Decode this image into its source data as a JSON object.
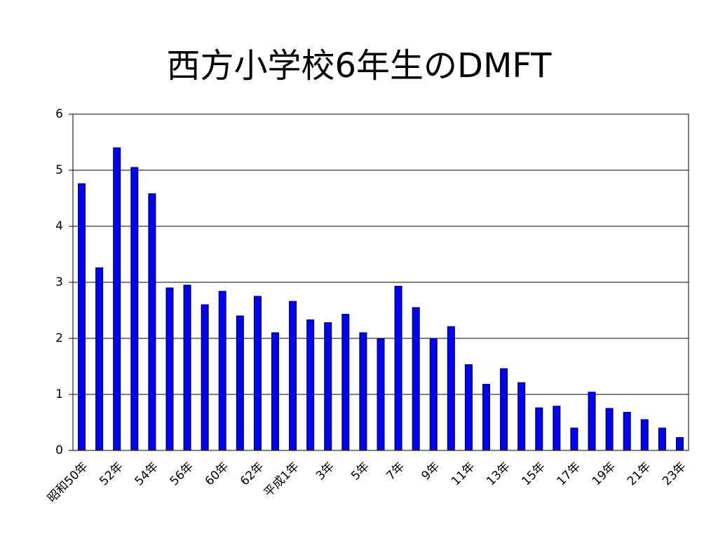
{
  "chart_data": {
    "type": "bar",
    "title": "西方小学校6年生のDMFT",
    "categories": [
      "昭和50年",
      null,
      "52年",
      null,
      "54年",
      null,
      "56年",
      null,
      "60年",
      null,
      "62年",
      null,
      "平成1年",
      null,
      "3年",
      null,
      "5年",
      null,
      "7年",
      null,
      "9年",
      null,
      "11年",
      null,
      "13年",
      null,
      "15年",
      null,
      "17年",
      null,
      "19年",
      null,
      "21年",
      null,
      "23年"
    ],
    "values": [
      4.76,
      3.26,
      5.4,
      5.05,
      4.58,
      2.9,
      2.95,
      2.6,
      2.84,
      2.4,
      2.75,
      2.1,
      2.66,
      2.33,
      2.28,
      2.43,
      2.1,
      1.99,
      2.93,
      2.55,
      2.0,
      2.21,
      1.53,
      1.18,
      1.46,
      1.21,
      0.76,
      0.79,
      0.4,
      1.04,
      0.75,
      0.68,
      0.55,
      0.4,
      0.23
    ],
    "color": "#0000ff",
    "ylim": [
      0,
      6
    ],
    "yticks": [
      0,
      1,
      2,
      3,
      4,
      5,
      6
    ],
    "grid": true
  }
}
